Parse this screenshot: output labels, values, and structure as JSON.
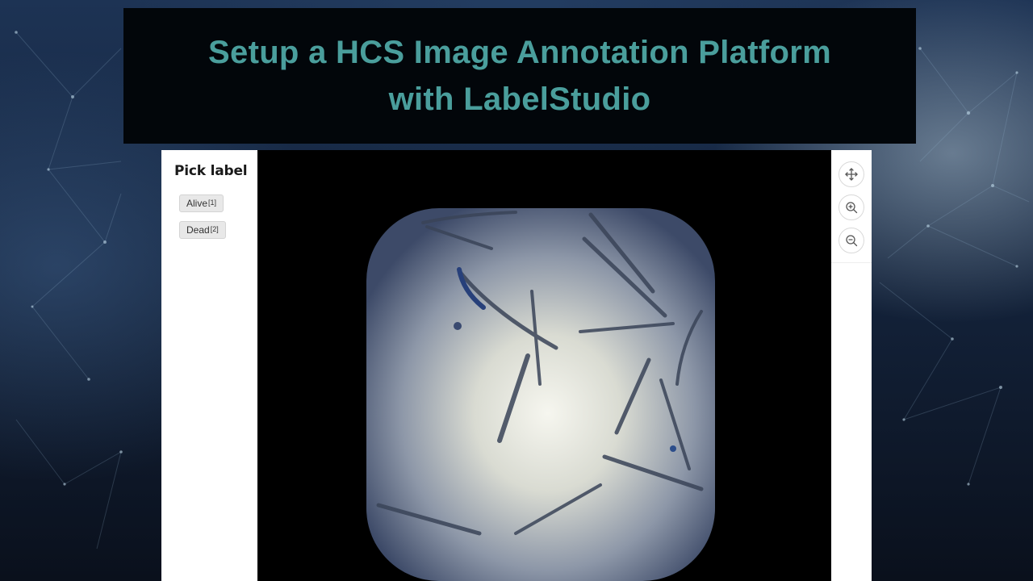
{
  "banner": {
    "line1": "Setup a HCS Image Annotation Platform",
    "line2": "with LabelStudio"
  },
  "label_panel": {
    "heading": "Pick label",
    "labels": [
      {
        "name": "Alive",
        "hotkey": "[1]"
      },
      {
        "name": "Dead",
        "hotkey": "[2]"
      }
    ]
  },
  "toolbar": {
    "icons": [
      "move-icon",
      "zoom-in-icon",
      "zoom-out-icon"
    ]
  },
  "colors": {
    "title_text": "#4a9e9c",
    "banner_bg": "#02060a",
    "panel_bg": "#ffffff"
  }
}
